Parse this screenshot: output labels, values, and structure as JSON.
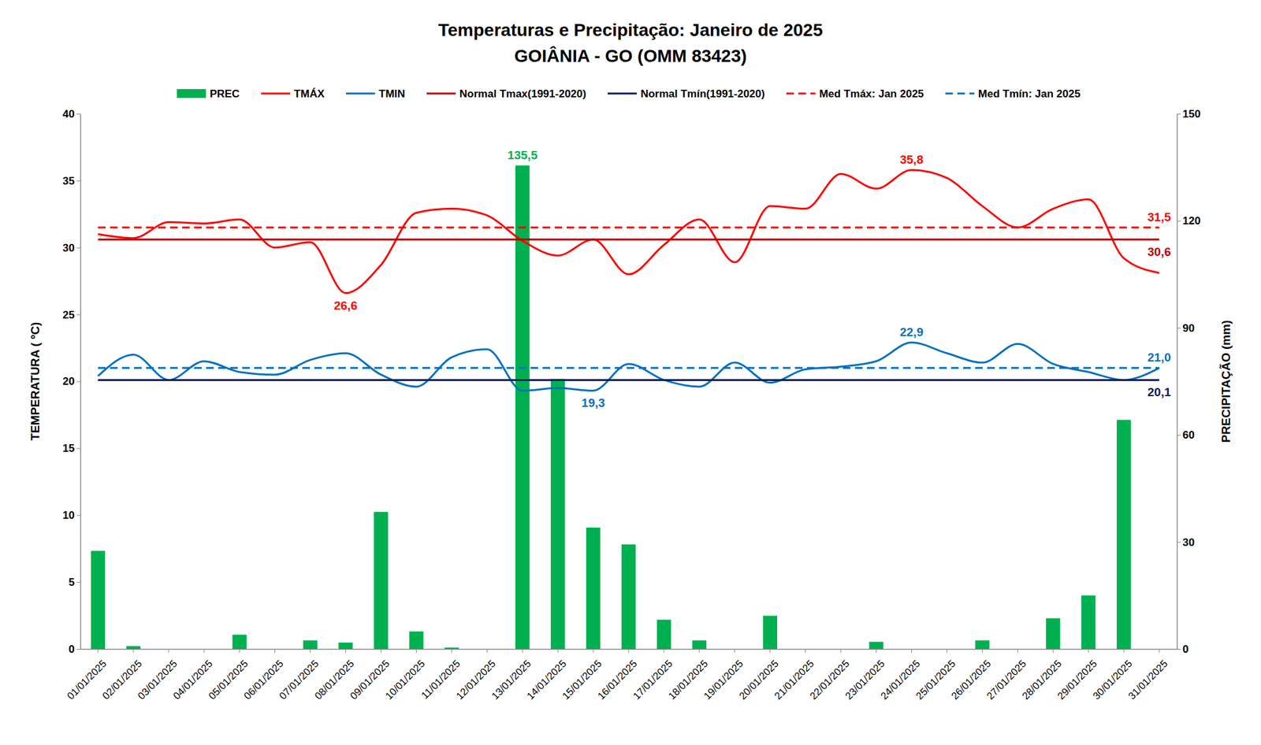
{
  "chart_data": {
    "type": "bar",
    "title": "Temperaturas e Precipitação: Janeiro de 2025",
    "subtitle": "GOIÂNIA - GO (OMM 83423)",
    "y_label": "TEMPERATURA ( ºC)",
    "y2_label": "PRECIPITAÇÃO (mm)",
    "categories": [
      "01/01/2025",
      "02/01/2025",
      "03/01/2025",
      "04/01/2025",
      "05/01/2025",
      "06/01/2025",
      "07/01/2025",
      "08/01/2025",
      "09/01/2025",
      "10/01/2025",
      "11/01/2025",
      "12/01/2025",
      "13/01/2025",
      "14/01/2025",
      "15/01/2025",
      "16/01/2025",
      "17/01/2025",
      "18/01/2025",
      "19/01/2025",
      "20/01/2025",
      "21/01/2025",
      "22/01/2025",
      "23/01/2025",
      "24/01/2025",
      "25/01/2025",
      "26/01/2025",
      "27/01/2025",
      "28/01/2025",
      "29/01/2025",
      "30/01/2025",
      "31/01/2025"
    ],
    "ylim": [
      0,
      40
    ],
    "yticks": [
      0,
      5,
      10,
      15,
      20,
      25,
      30,
      35,
      40
    ],
    "y2lim": [
      0,
      150
    ],
    "y2ticks": [
      0,
      30,
      60,
      90,
      120,
      150
    ],
    "grid": false,
    "legend": "top",
    "series": [
      {
        "name": "PREC",
        "type": "bar",
        "axis": "y2",
        "color": "#00b050",
        "values": [
          27.5,
          0.8,
          0,
          0,
          4.0,
          0,
          2.4,
          1.8,
          38.4,
          4.9,
          0.4,
          0,
          135.5,
          75.7,
          34.0,
          29.3,
          8.2,
          2.4,
          0,
          9.3,
          0,
          0,
          2.0,
          0,
          0,
          2.4,
          0,
          8.6,
          15.0,
          64.2,
          0
        ]
      },
      {
        "name": "TMÁX",
        "type": "line",
        "color": "#ff0000",
        "line_style": "solid",
        "values": [
          31.0,
          30.7,
          31.9,
          31.8,
          32.1,
          30.0,
          30.4,
          26.6,
          28.7,
          32.6,
          32.9,
          32.4,
          30.5,
          29.4,
          30.6,
          28.0,
          30.2,
          32.1,
          28.9,
          33.1,
          32.9,
          35.5,
          34.4,
          35.8,
          35.2,
          33.1,
          31.5,
          32.9,
          33.6,
          29.2,
          28.1
        ]
      },
      {
        "name": "TMIN",
        "type": "line",
        "color": "#0070c0",
        "line_style": "solid",
        "values": [
          20.4,
          22.0,
          20.1,
          21.5,
          20.7,
          20.5,
          21.6,
          22.1,
          20.5,
          19.6,
          21.8,
          22.4,
          19.3,
          19.5,
          19.3,
          21.3,
          20.1,
          19.6,
          21.4,
          19.9,
          20.9,
          21.1,
          21.5,
          22.9,
          22.1,
          21.4,
          22.8,
          21.3,
          20.7,
          20.1,
          21.0
        ]
      },
      {
        "name": "Normal Tmax(1991-2020)",
        "type": "line",
        "color": "#c00000",
        "line_style": "solid",
        "values": [
          30.6,
          30.6,
          30.6,
          30.6,
          30.6,
          30.6,
          30.6,
          30.6,
          30.6,
          30.6,
          30.6,
          30.6,
          30.6,
          30.6,
          30.6,
          30.6,
          30.6,
          30.6,
          30.6,
          30.6,
          30.6,
          30.6,
          30.6,
          30.6,
          30.6,
          30.6,
          30.6,
          30.6,
          30.6,
          30.6,
          30.6
        ]
      },
      {
        "name": "Normal Tmín(1991-2020)",
        "type": "line",
        "color": "#002060",
        "line_style": "solid",
        "values": [
          20.1,
          20.1,
          20.1,
          20.1,
          20.1,
          20.1,
          20.1,
          20.1,
          20.1,
          20.1,
          20.1,
          20.1,
          20.1,
          20.1,
          20.1,
          20.1,
          20.1,
          20.1,
          20.1,
          20.1,
          20.1,
          20.1,
          20.1,
          20.1,
          20.1,
          20.1,
          20.1,
          20.1,
          20.1,
          20.1,
          20.1
        ]
      },
      {
        "name": "Med Tmáx: Jan 2025",
        "type": "line",
        "color": "#ff0000",
        "line_style": "dashed",
        "values": [
          31.5,
          31.5,
          31.5,
          31.5,
          31.5,
          31.5,
          31.5,
          31.5,
          31.5,
          31.5,
          31.5,
          31.5,
          31.5,
          31.5,
          31.5,
          31.5,
          31.5,
          31.5,
          31.5,
          31.5,
          31.5,
          31.5,
          31.5,
          31.5,
          31.5,
          31.5,
          31.5,
          31.5,
          31.5,
          31.5,
          31.5
        ]
      },
      {
        "name": "Med Tmín: Jan 2025",
        "type": "line",
        "color": "#0070c0",
        "line_style": "dashed",
        "values": [
          21.0,
          21.0,
          21.0,
          21.0,
          21.0,
          21.0,
          21.0,
          21.0,
          21.0,
          21.0,
          21.0,
          21.0,
          21.0,
          21.0,
          21.0,
          21.0,
          21.0,
          21.0,
          21.0,
          21.0,
          21.0,
          21.0,
          21.0,
          21.0,
          21.0,
          21.0,
          21.0,
          21.0,
          21.0,
          21.0,
          21.0
        ]
      }
    ],
    "annotations": [
      {
        "text": "135,5",
        "series": "PREC",
        "x": "13/01/2025",
        "value": 135.5
      },
      {
        "text": "26,6",
        "series": "TMÁX",
        "x": "08/01/2025",
        "value": 26.6
      },
      {
        "text": "35,8",
        "series": "TMÁX",
        "x": "24/01/2025",
        "value": 35.8
      },
      {
        "text": "22,9",
        "series": "TMIN",
        "x": "24/01/2025",
        "value": 22.9
      },
      {
        "text": "19,3",
        "series": "TMIN",
        "x": "15/01/2025",
        "value": 19.3
      },
      {
        "text": "31,5",
        "series": "Med Tmáx: Jan 2025",
        "x": "31/01/2025",
        "value": 31.5
      },
      {
        "text": "30,6",
        "series": "Normal Tmax(1991-2020)",
        "x": "31/01/2025",
        "value": 30.6
      },
      {
        "text": "21,0",
        "series": "Med Tmín: Jan 2025",
        "x": "31/01/2025",
        "value": 21.0
      },
      {
        "text": "20,1",
        "series": "Normal Tmín(1991-2020)",
        "x": "31/01/2025",
        "value": 20.1
      }
    ]
  }
}
